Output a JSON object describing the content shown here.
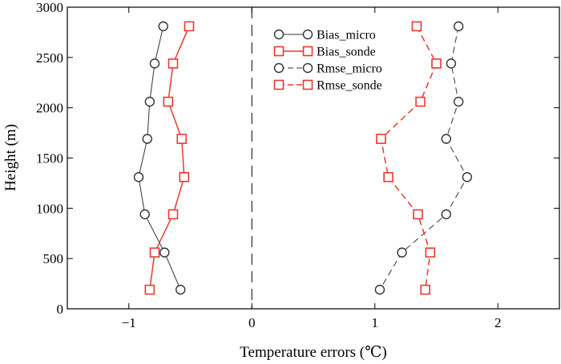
{
  "chart_data": {
    "type": "line",
    "title": "",
    "xlabel": "Temperature errors (℃)",
    "ylabel": "Height (m)",
    "xlim": [
      -1.5,
      2.5
    ],
    "ylim": [
      0,
      3000
    ],
    "xticks": [
      -1,
      0,
      1,
      2
    ],
    "yticks": [
      0,
      500,
      1000,
      1500,
      2000,
      2500,
      3000
    ],
    "xtick_labels": [
      "−1",
      "0",
      "1",
      "2"
    ],
    "ytick_labels": [
      "0",
      "500",
      "1000",
      "1500",
      "2000",
      "2500",
      "3000"
    ],
    "grid": false,
    "legend_position": "top-center",
    "reference_line": {
      "x": 0,
      "style": "dashed"
    },
    "series": [
      {
        "name": "Bias_micro",
        "color": "#333333",
        "marker": "circle",
        "line_style": "solid",
        "points": [
          [
            -0.72,
            2810
          ],
          [
            -0.79,
            2440
          ],
          [
            -0.83,
            2060
          ],
          [
            -0.85,
            1690
          ],
          [
            -0.92,
            1310
          ],
          [
            -0.87,
            940
          ],
          [
            -0.71,
            560
          ],
          [
            -0.58,
            190
          ]
        ]
      },
      {
        "name": "Bias_sonde",
        "color": "#e8392e",
        "marker": "square",
        "line_style": "solid",
        "points": [
          [
            -0.51,
            2810
          ],
          [
            -0.64,
            2440
          ],
          [
            -0.68,
            2060
          ],
          [
            -0.57,
            1690
          ],
          [
            -0.55,
            1310
          ],
          [
            -0.64,
            940
          ],
          [
            -0.79,
            560
          ],
          [
            -0.83,
            190
          ]
        ]
      },
      {
        "name": "Rmse_micro",
        "color": "#333333",
        "marker": "circle",
        "line_style": "dashed",
        "points": [
          [
            1.68,
            2810
          ],
          [
            1.62,
            2440
          ],
          [
            1.68,
            2060
          ],
          [
            1.58,
            1690
          ],
          [
            1.75,
            1310
          ],
          [
            1.58,
            940
          ],
          [
            1.22,
            560
          ],
          [
            1.04,
            190
          ]
        ]
      },
      {
        "name": "Rmse_sonde",
        "color": "#e8392e",
        "marker": "square",
        "line_style": "dashed",
        "points": [
          [
            1.34,
            2810
          ],
          [
            1.5,
            2440
          ],
          [
            1.37,
            2060
          ],
          [
            1.05,
            1690
          ],
          [
            1.11,
            1310
          ],
          [
            1.35,
            940
          ],
          [
            1.45,
            560
          ],
          [
            1.41,
            190
          ]
        ]
      }
    ]
  }
}
